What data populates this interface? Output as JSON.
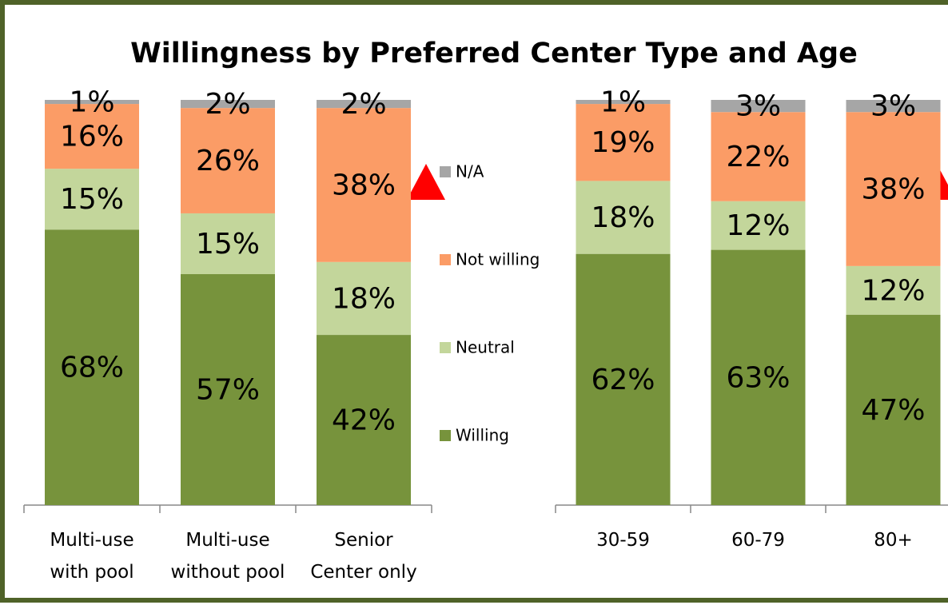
{
  "chart_data": [
    {
      "type": "stacked_bar",
      "title": "Willingness by Preferred Center Type and Age",
      "categories": [
        "Multi-use\nwith pool",
        "Multi-use\nwithout pool",
        "Senior\nCenter only"
      ],
      "ylim": [
        0,
        100
      ],
      "series": [
        {
          "name": "Willing",
          "color": "#77933c",
          "values": [
            68,
            57,
            42
          ],
          "value_labels": [
            "68%",
            "57%",
            "42%"
          ]
        },
        {
          "name": "Neutral",
          "color": "#c3d69b",
          "values": [
            15,
            15,
            18
          ],
          "value_labels": [
            "15%",
            "15%",
            "18%"
          ]
        },
        {
          "name": "Not willing",
          "color": "#fb9c66",
          "values": [
            16,
            26,
            38
          ],
          "value_labels": [
            "16%",
            "26%",
            "38%"
          ]
        },
        {
          "name": "N/A",
          "color": "#a6a6a6",
          "values": [
            1,
            2,
            2
          ],
          "value_labels": [
            "1%",
            "2%",
            "2%"
          ]
        }
      ]
    },
    {
      "type": "stacked_bar",
      "categories": [
        "30-59",
        "60-79",
        "80+"
      ],
      "ylim": [
        0,
        100
      ],
      "series": [
        {
          "color": "#77933c",
          "values": [
            62,
            63,
            47
          ],
          "value_labels": [
            "62%",
            "63%",
            "47%"
          ]
        },
        {
          "color": "#c3d69b",
          "values": [
            18,
            12,
            12
          ],
          "value_labels": [
            "18%",
            "12%",
            "12%"
          ]
        },
        {
          "color": "#fb9c66",
          "values": [
            19,
            22,
            38
          ],
          "value_labels": [
            "19%",
            "22%",
            "38%"
          ]
        },
        {
          "color": "#a6a6a6",
          "values": [
            1,
            3,
            3
          ],
          "value_labels": [
            "1%",
            "3%",
            "3%"
          ]
        }
      ]
    }
  ]
}
